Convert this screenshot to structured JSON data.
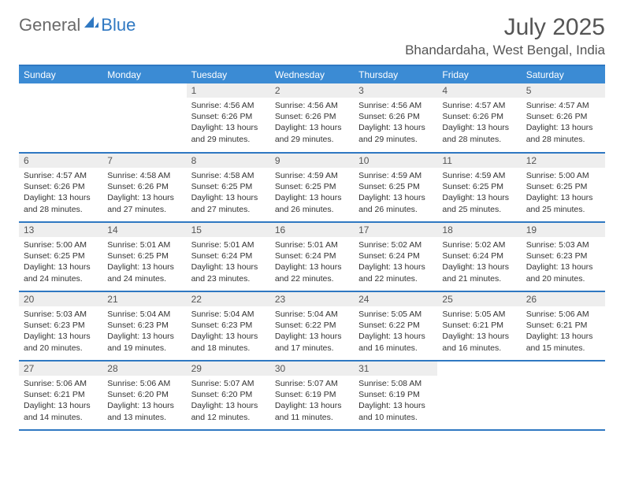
{
  "brand": {
    "text1": "General",
    "text2": "Blue"
  },
  "title": "July 2025",
  "location": "Bhandardaha, West Bengal, India",
  "colors": {
    "header_bg": "#3b8bd4",
    "header_border": "#2f78c2",
    "daynum_bg": "#eeeeee",
    "text": "#333333",
    "brand_gray": "#6a6a6a",
    "brand_blue": "#2f78c2"
  },
  "dayNames": [
    "Sunday",
    "Monday",
    "Tuesday",
    "Wednesday",
    "Thursday",
    "Friday",
    "Saturday"
  ],
  "weeks": [
    [
      null,
      null,
      {
        "n": "1",
        "sr": "4:56 AM",
        "ss": "6:26 PM",
        "dl": "13 hours and 29 minutes."
      },
      {
        "n": "2",
        "sr": "4:56 AM",
        "ss": "6:26 PM",
        "dl": "13 hours and 29 minutes."
      },
      {
        "n": "3",
        "sr": "4:56 AM",
        "ss": "6:26 PM",
        "dl": "13 hours and 29 minutes."
      },
      {
        "n": "4",
        "sr": "4:57 AM",
        "ss": "6:26 PM",
        "dl": "13 hours and 28 minutes."
      },
      {
        "n": "5",
        "sr": "4:57 AM",
        "ss": "6:26 PM",
        "dl": "13 hours and 28 minutes."
      }
    ],
    [
      {
        "n": "6",
        "sr": "4:57 AM",
        "ss": "6:26 PM",
        "dl": "13 hours and 28 minutes."
      },
      {
        "n": "7",
        "sr": "4:58 AM",
        "ss": "6:26 PM",
        "dl": "13 hours and 27 minutes."
      },
      {
        "n": "8",
        "sr": "4:58 AM",
        "ss": "6:25 PM",
        "dl": "13 hours and 27 minutes."
      },
      {
        "n": "9",
        "sr": "4:59 AM",
        "ss": "6:25 PM",
        "dl": "13 hours and 26 minutes."
      },
      {
        "n": "10",
        "sr": "4:59 AM",
        "ss": "6:25 PM",
        "dl": "13 hours and 26 minutes."
      },
      {
        "n": "11",
        "sr": "4:59 AM",
        "ss": "6:25 PM",
        "dl": "13 hours and 25 minutes."
      },
      {
        "n": "12",
        "sr": "5:00 AM",
        "ss": "6:25 PM",
        "dl": "13 hours and 25 minutes."
      }
    ],
    [
      {
        "n": "13",
        "sr": "5:00 AM",
        "ss": "6:25 PM",
        "dl": "13 hours and 24 minutes."
      },
      {
        "n": "14",
        "sr": "5:01 AM",
        "ss": "6:25 PM",
        "dl": "13 hours and 24 minutes."
      },
      {
        "n": "15",
        "sr": "5:01 AM",
        "ss": "6:24 PM",
        "dl": "13 hours and 23 minutes."
      },
      {
        "n": "16",
        "sr": "5:01 AM",
        "ss": "6:24 PM",
        "dl": "13 hours and 22 minutes."
      },
      {
        "n": "17",
        "sr": "5:02 AM",
        "ss": "6:24 PM",
        "dl": "13 hours and 22 minutes."
      },
      {
        "n": "18",
        "sr": "5:02 AM",
        "ss": "6:24 PM",
        "dl": "13 hours and 21 minutes."
      },
      {
        "n": "19",
        "sr": "5:03 AM",
        "ss": "6:23 PM",
        "dl": "13 hours and 20 minutes."
      }
    ],
    [
      {
        "n": "20",
        "sr": "5:03 AM",
        "ss": "6:23 PM",
        "dl": "13 hours and 20 minutes."
      },
      {
        "n": "21",
        "sr": "5:04 AM",
        "ss": "6:23 PM",
        "dl": "13 hours and 19 minutes."
      },
      {
        "n": "22",
        "sr": "5:04 AM",
        "ss": "6:23 PM",
        "dl": "13 hours and 18 minutes."
      },
      {
        "n": "23",
        "sr": "5:04 AM",
        "ss": "6:22 PM",
        "dl": "13 hours and 17 minutes."
      },
      {
        "n": "24",
        "sr": "5:05 AM",
        "ss": "6:22 PM",
        "dl": "13 hours and 16 minutes."
      },
      {
        "n": "25",
        "sr": "5:05 AM",
        "ss": "6:21 PM",
        "dl": "13 hours and 16 minutes."
      },
      {
        "n": "26",
        "sr": "5:06 AM",
        "ss": "6:21 PM",
        "dl": "13 hours and 15 minutes."
      }
    ],
    [
      {
        "n": "27",
        "sr": "5:06 AM",
        "ss": "6:21 PM",
        "dl": "13 hours and 14 minutes."
      },
      {
        "n": "28",
        "sr": "5:06 AM",
        "ss": "6:20 PM",
        "dl": "13 hours and 13 minutes."
      },
      {
        "n": "29",
        "sr": "5:07 AM",
        "ss": "6:20 PM",
        "dl": "13 hours and 12 minutes."
      },
      {
        "n": "30",
        "sr": "5:07 AM",
        "ss": "6:19 PM",
        "dl": "13 hours and 11 minutes."
      },
      {
        "n": "31",
        "sr": "5:08 AM",
        "ss": "6:19 PM",
        "dl": "13 hours and 10 minutes."
      },
      null,
      null
    ]
  ],
  "labels": {
    "sunrise": "Sunrise: ",
    "sunset": "Sunset: ",
    "daylight": "Daylight: "
  }
}
